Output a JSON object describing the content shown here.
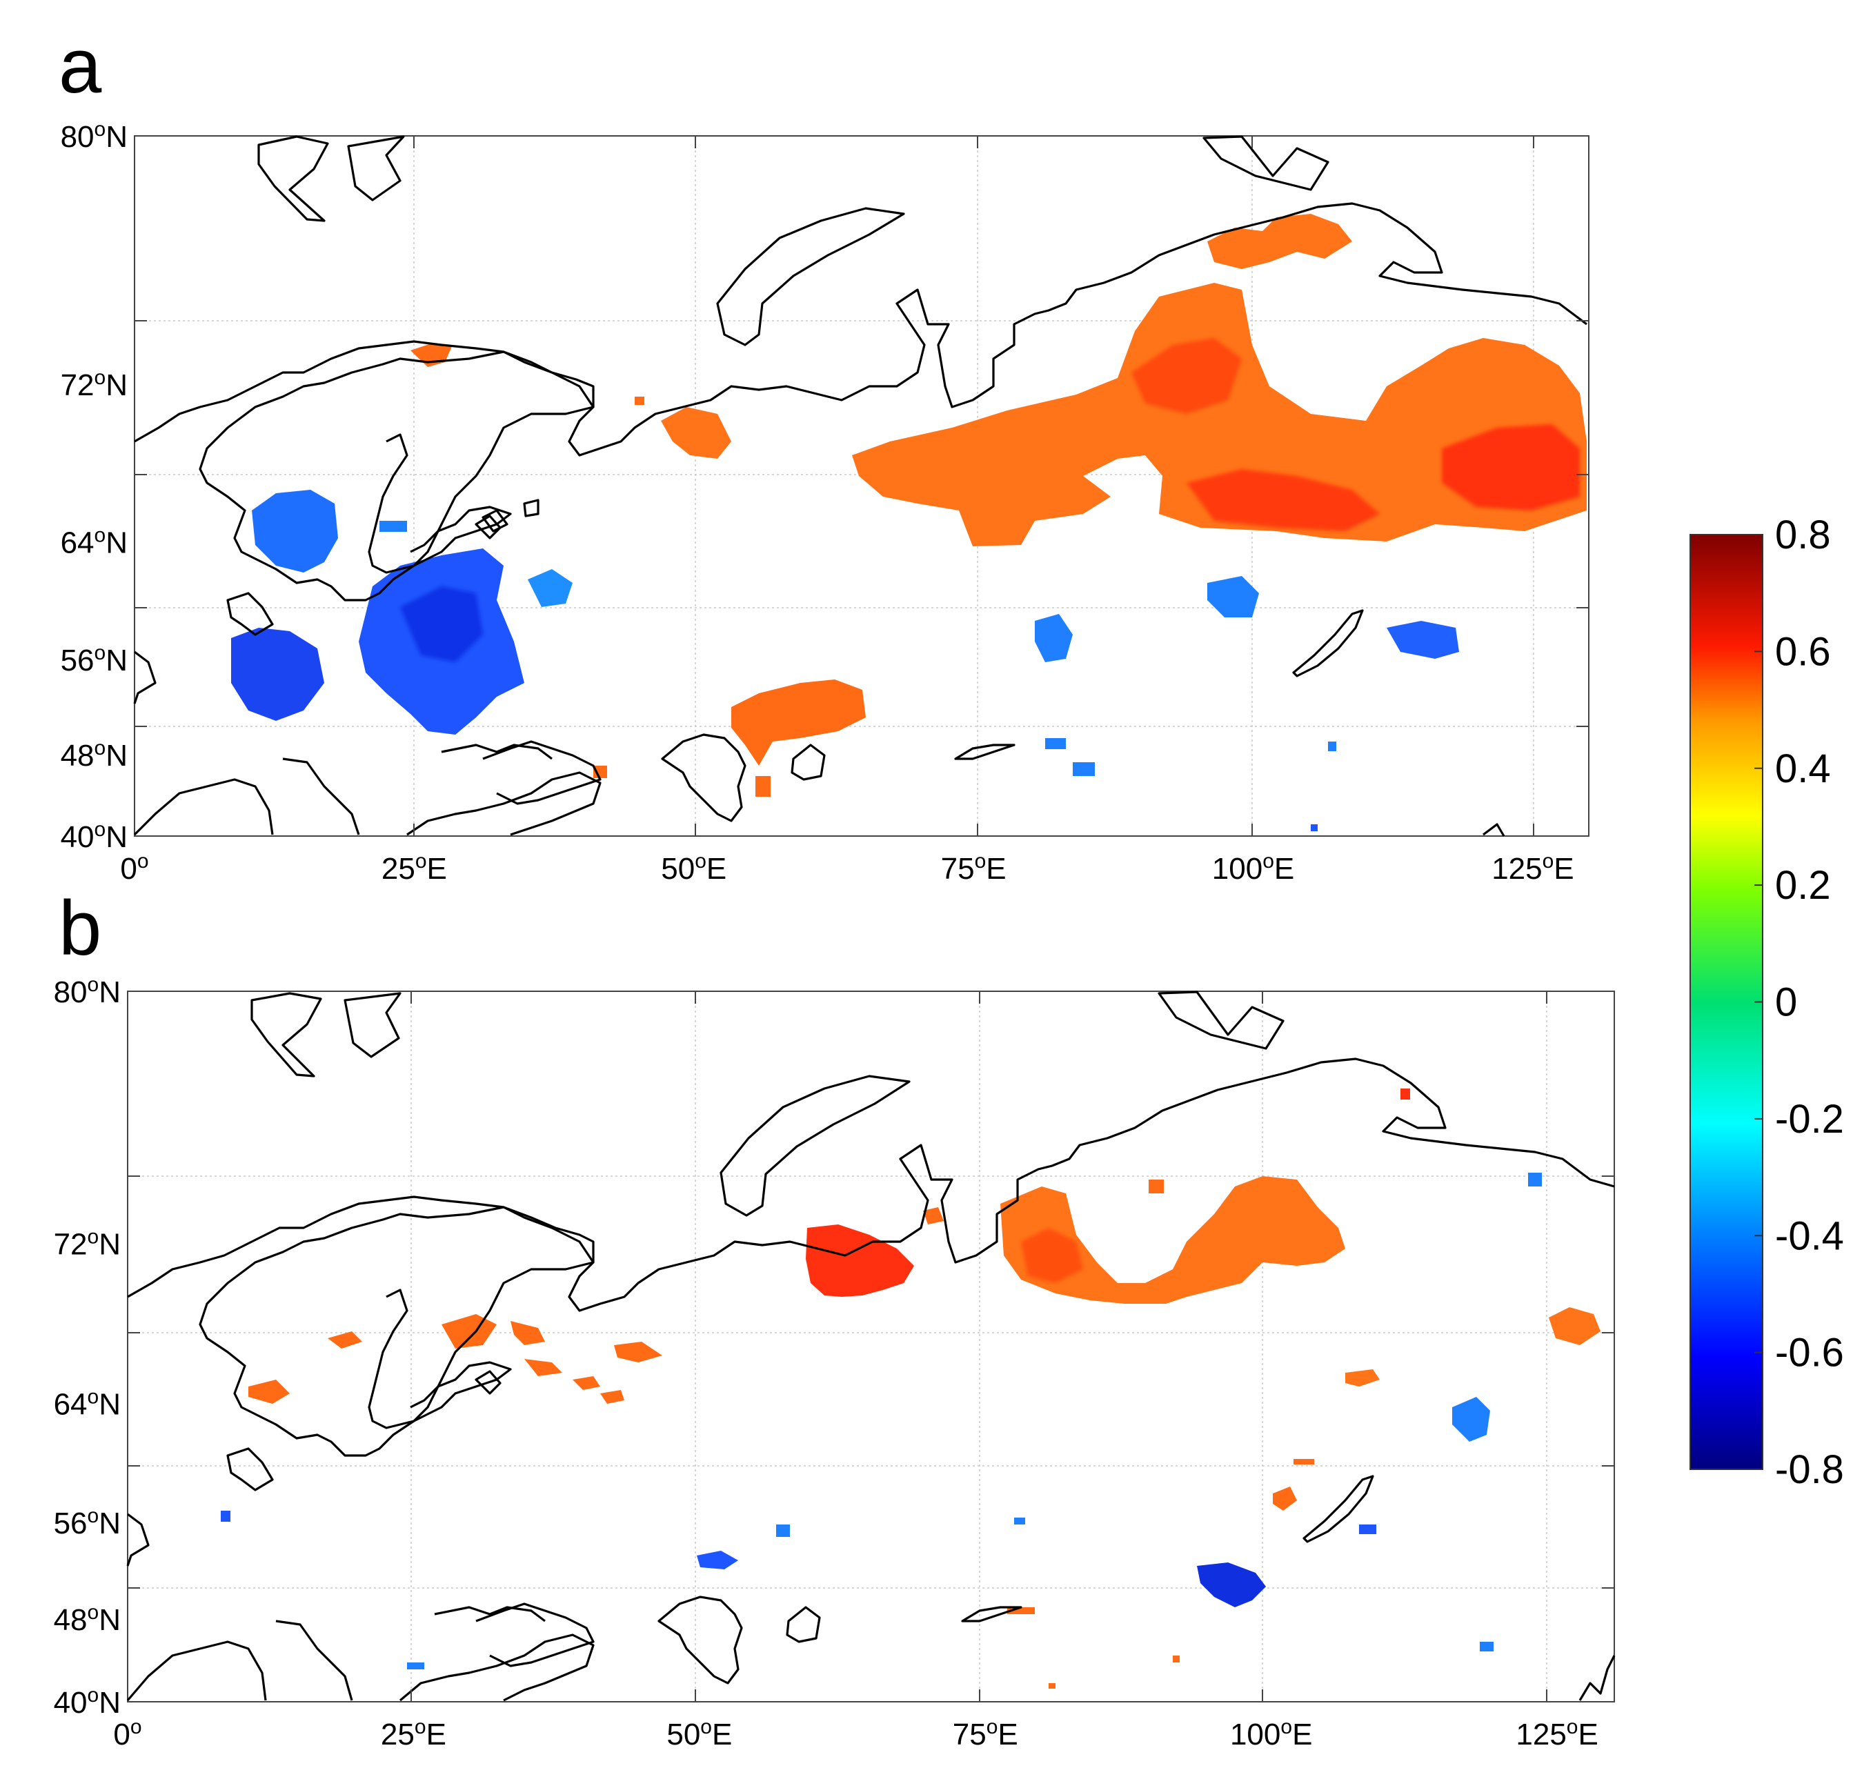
{
  "panels": [
    {
      "label": "a"
    },
    {
      "label": "b"
    }
  ],
  "lat_ticks": [
    {
      "value": 80,
      "num": "80",
      "sup": "o",
      "suffix": "N"
    },
    {
      "value": 72,
      "num": "72",
      "sup": "o",
      "suffix": "N"
    },
    {
      "value": 64,
      "num": "64",
      "sup": "o",
      "suffix": "N"
    },
    {
      "value": 56,
      "num": "56",
      "sup": "o",
      "suffix": "N"
    },
    {
      "value": 48,
      "num": "48",
      "sup": "o",
      "suffix": "N"
    },
    {
      "value": 40,
      "num": "40",
      "sup": "o",
      "suffix": "N"
    }
  ],
  "lon_ticks": [
    {
      "value": 0,
      "num": "0",
      "sup": "o",
      "suffix": ""
    },
    {
      "value": 25,
      "num": "25",
      "sup": "o",
      "suffix": "E"
    },
    {
      "value": 50,
      "num": "50",
      "sup": "o",
      "suffix": "E"
    },
    {
      "value": 75,
      "num": "75",
      "sup": "o",
      "suffix": "E"
    },
    {
      "value": 100,
      "num": "100",
      "sup": "o",
      "suffix": "E"
    },
    {
      "value": 125,
      "num": "125",
      "sup": "o",
      "suffix": "E"
    }
  ],
  "colorbar": {
    "min": -0.8,
    "max": 0.8,
    "labels": [
      "0.8",
      "0.6",
      "0.4",
      "0.2",
      "0",
      "-0.2",
      "-0.4",
      "-0.6",
      "-0.8"
    ],
    "stops": [
      "#00007f",
      "#0000ff",
      "#007fff",
      "#00ffff",
      "#00ff7f",
      "#7fff00",
      "#ffff00",
      "#ff7f00",
      "#ff0000",
      "#7f0000"
    ]
  },
  "colors": {
    "positive_field": "#ff6a10",
    "strong_positive_field": "#ff2a08",
    "negative_field": "#1f5fff",
    "strong_negative_field": "#1030e0"
  }
}
